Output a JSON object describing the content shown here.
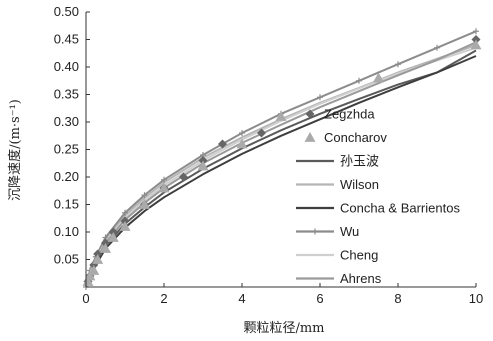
{
  "chart_data": {
    "type": "line",
    "xlabel": "颗粒粒径/mm",
    "ylabel": "沉降速度/(m·s⁻¹)",
    "xlim": [
      0,
      10
    ],
    "ylim": [
      0,
      0.5
    ],
    "xticks": [
      0,
      2,
      4,
      6,
      8,
      10
    ],
    "yticks": [
      0.05,
      0.1,
      0.15,
      0.2,
      0.25,
      0.3,
      0.35,
      0.4,
      0.45,
      0.5
    ],
    "xtick_labels": [
      "0",
      "2",
      "4",
      "6",
      "8",
      "10"
    ],
    "ytick_labels": [
      "0.05",
      "0.10",
      "0.15",
      "0.20",
      "0.25",
      "0.30",
      "0.35",
      "0.40",
      "0.45",
      "0.50"
    ],
    "grid": false,
    "legend_position": "center-right",
    "series": [
      {
        "name": "Zegzhda",
        "kind": "marker",
        "marker": "diamond",
        "color": "#666666",
        "x": [
          0.05,
          0.1,
          0.2,
          0.3,
          0.5,
          0.7,
          1.0,
          1.5,
          2.0,
          2.5,
          3.0,
          3.5,
          4.5,
          10.0
        ],
        "y": [
          0.01,
          0.02,
          0.04,
          0.06,
          0.08,
          0.1,
          0.12,
          0.15,
          0.18,
          0.2,
          0.23,
          0.26,
          0.28,
          0.45
        ]
      },
      {
        "name": "Concharov",
        "kind": "marker",
        "marker": "triangle",
        "color": "#aaaaaa",
        "x": [
          0.05,
          0.1,
          0.2,
          0.3,
          0.5,
          0.7,
          1.0,
          1.5,
          2.0,
          3.0,
          4.0,
          5.0,
          7.5,
          10.0
        ],
        "y": [
          0.01,
          0.02,
          0.03,
          0.05,
          0.07,
          0.09,
          0.11,
          0.15,
          0.18,
          0.22,
          0.26,
          0.31,
          0.38,
          0.44
        ]
      },
      {
        "name": "孙玉波",
        "kind": "line",
        "color": "#5a5a5a",
        "x": [
          0,
          0.1,
          0.25,
          0.5,
          1,
          1.5,
          2,
          3,
          4,
          5,
          6,
          7,
          8,
          9,
          10
        ],
        "y": [
          0,
          0.02,
          0.045,
          0.075,
          0.115,
          0.145,
          0.172,
          0.215,
          0.252,
          0.285,
          0.315,
          0.342,
          0.368,
          0.39,
          0.43
        ]
      },
      {
        "name": "Wilson",
        "kind": "line",
        "color": "#b5b5b5",
        "x": [
          0,
          0.1,
          0.25,
          0.5,
          1,
          1.5,
          2,
          3,
          4,
          5,
          6,
          7,
          8,
          9,
          10
        ],
        "y": [
          0,
          0.025,
          0.05,
          0.085,
          0.13,
          0.162,
          0.19,
          0.235,
          0.272,
          0.305,
          0.335,
          0.362,
          0.39,
          0.415,
          0.44
        ]
      },
      {
        "name": "Concha & Barrientos",
        "kind": "line",
        "color": "#3e3e3e",
        "x": [
          0,
          0.1,
          0.25,
          0.5,
          1,
          1.5,
          2,
          3,
          4,
          5,
          6,
          7,
          8,
          9,
          10
        ],
        "y": [
          0,
          0.018,
          0.04,
          0.07,
          0.108,
          0.138,
          0.163,
          0.205,
          0.242,
          0.275,
          0.305,
          0.335,
          0.363,
          0.39,
          0.42
        ]
      },
      {
        "name": "Wu",
        "kind": "line",
        "marker": "plus",
        "color": "#8c8c8c",
        "x": [
          0,
          0.1,
          0.25,
          0.5,
          1,
          1.5,
          2,
          3,
          4,
          5,
          6,
          7,
          8,
          9,
          10
        ],
        "y": [
          0,
          0.03,
          0.055,
          0.09,
          0.135,
          0.167,
          0.195,
          0.24,
          0.28,
          0.315,
          0.345,
          0.375,
          0.405,
          0.435,
          0.465
        ]
      },
      {
        "name": "Cheng",
        "kind": "line",
        "color": "#cfcfcf",
        "x": [
          0,
          0.1,
          0.25,
          0.5,
          1,
          1.5,
          2,
          3,
          4,
          5,
          6,
          7,
          8,
          9,
          10
        ],
        "y": [
          0,
          0.025,
          0.05,
          0.082,
          0.125,
          0.157,
          0.185,
          0.23,
          0.268,
          0.302,
          0.333,
          0.361,
          0.388,
          0.412,
          0.435
        ]
      },
      {
        "name": "Ahrens",
        "kind": "line",
        "color": "#9a9a9a",
        "x": [
          0,
          0.1,
          0.25,
          0.5,
          1,
          1.5,
          2,
          3,
          4,
          5,
          6,
          7,
          8,
          9,
          10
        ],
        "y": [
          0,
          0.022,
          0.047,
          0.08,
          0.122,
          0.153,
          0.18,
          0.225,
          0.262,
          0.295,
          0.327,
          0.356,
          0.385,
          0.413,
          0.445
        ]
      }
    ]
  }
}
